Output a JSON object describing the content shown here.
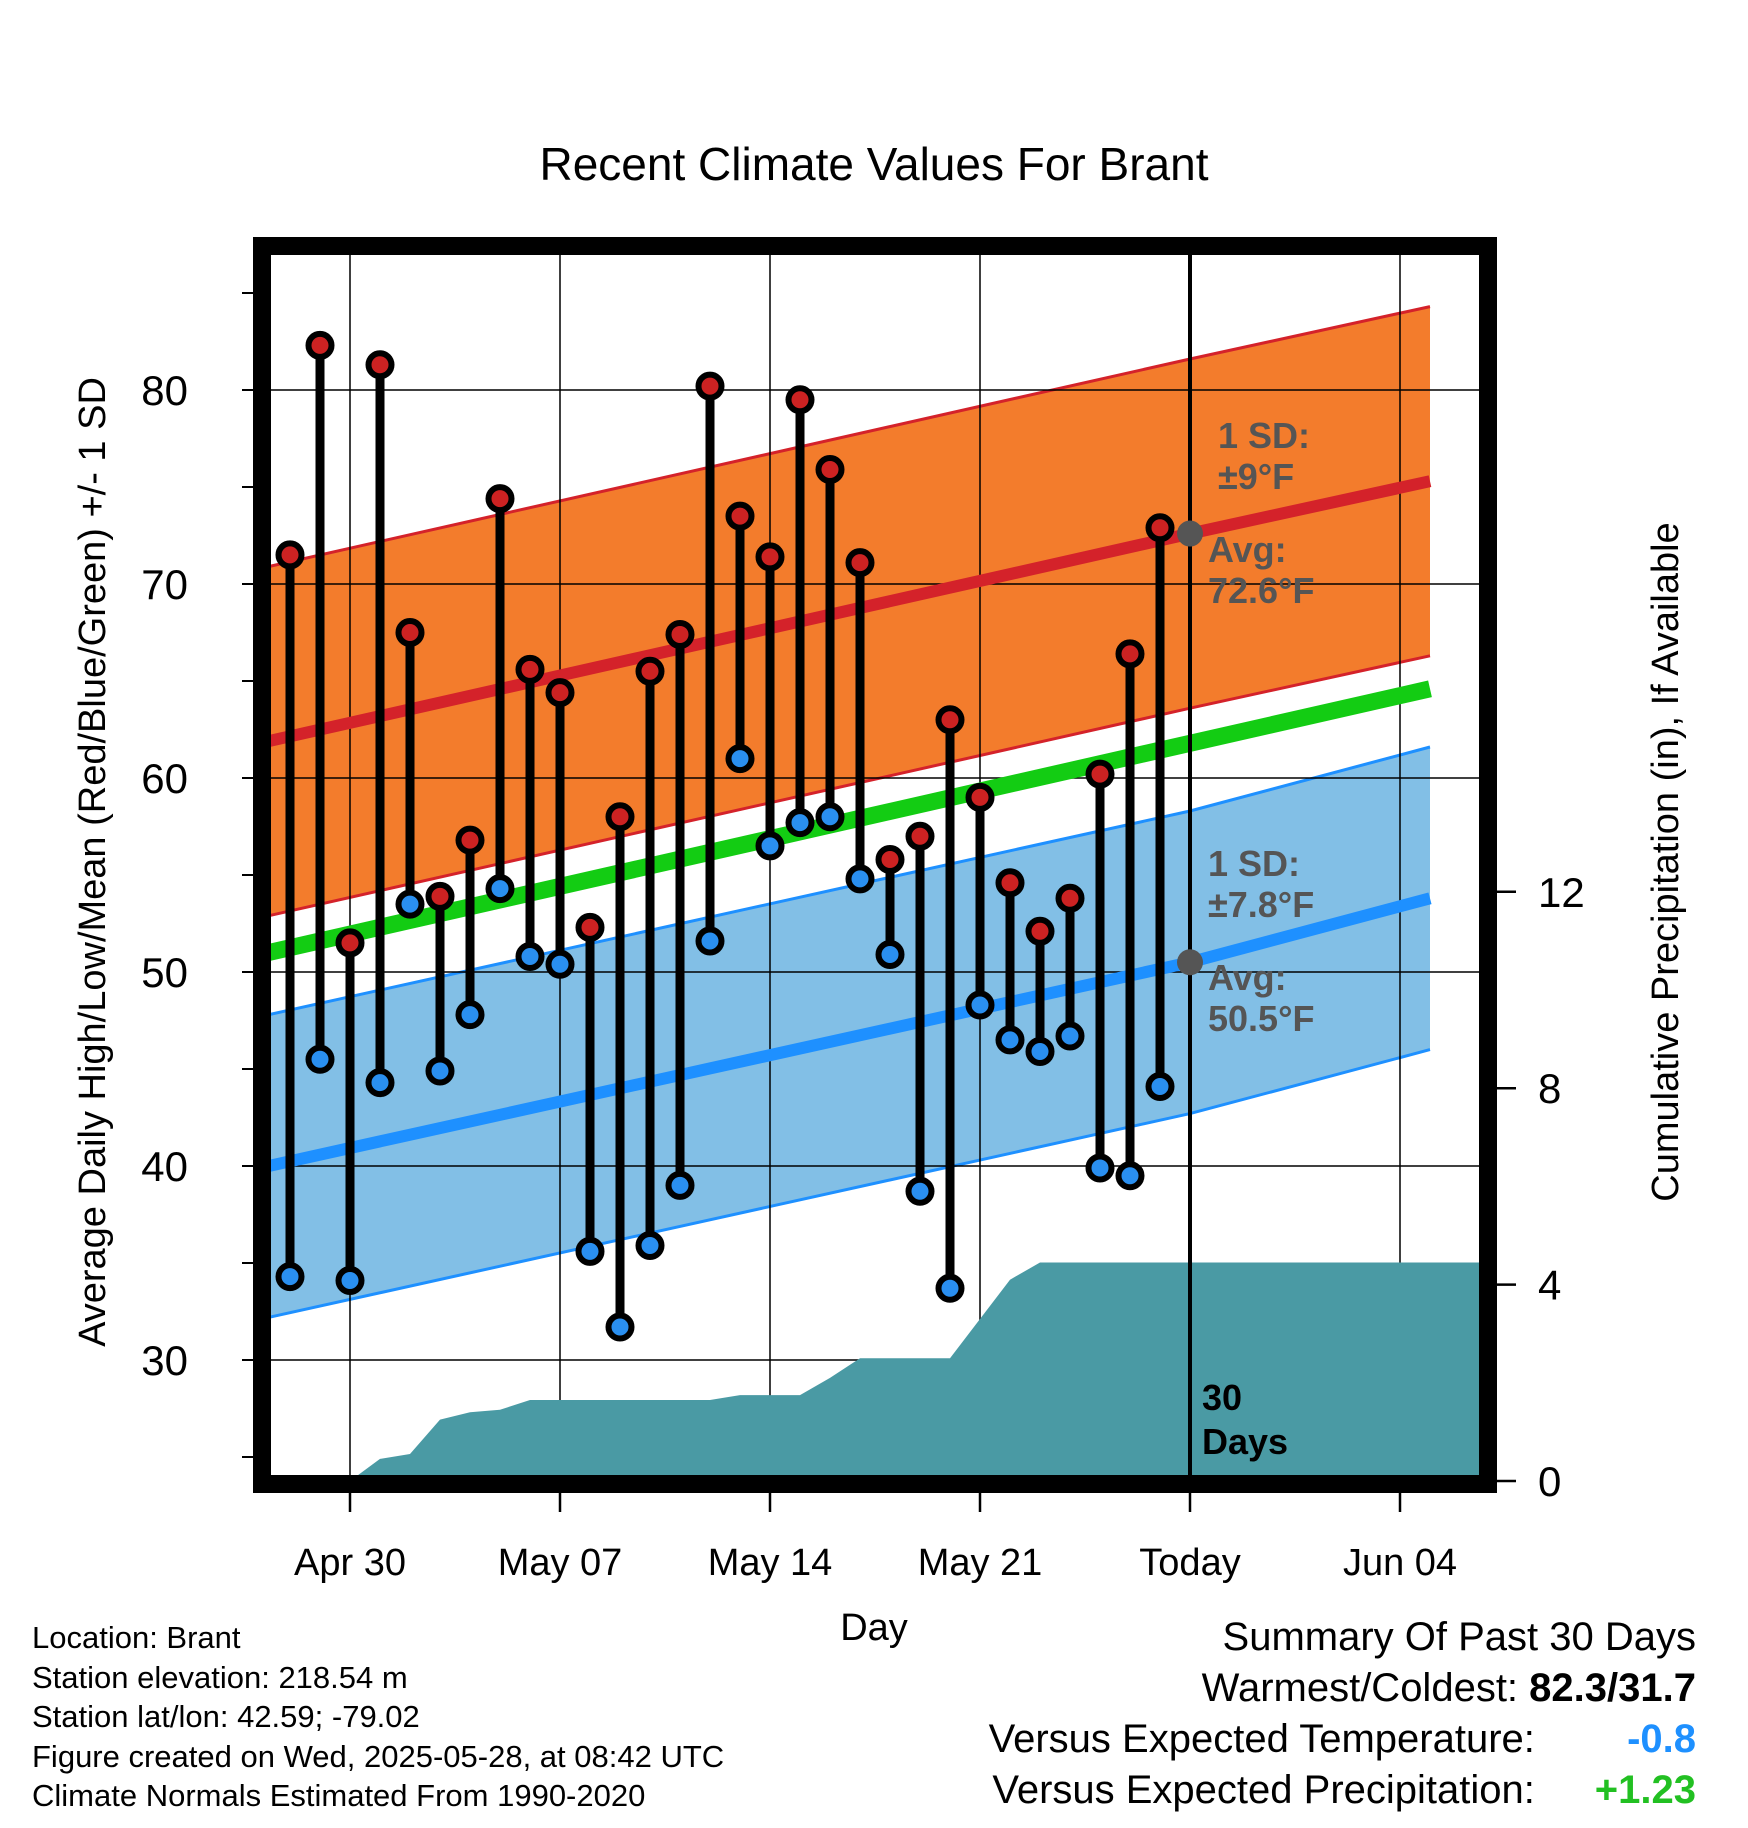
{
  "chart_data": {
    "type": "line",
    "title": "Recent Climate Values For Brant",
    "xlabel": "Day",
    "ylabel": "Average Daily High/Low/Mean (Red/Blue/Green) +/- 1 SD",
    "y2label": "Cumulative Precipitation (in), If Available",
    "ylim": [
      24.2,
      87.6
    ],
    "y2lim": [
      -0.2,
      18.8
    ],
    "xlim": [
      -5.3,
      40.2
    ],
    "x_tick_labels": [
      {
        "day": 0,
        "label": "Apr 30"
      },
      {
        "day": 7,
        "label": "May 07"
      },
      {
        "day": 14,
        "label": "May 14"
      },
      {
        "day": 21,
        "label": "May 21"
      },
      {
        "day": 28,
        "label": "Today"
      },
      {
        "day": 35,
        "label": "Jun 04"
      }
    ],
    "y_ticks": [
      30,
      40,
      50,
      60,
      70,
      80
    ],
    "y2_ticks": [
      0,
      4,
      8,
      12
    ],
    "grid": true,
    "series": [
      {
        "name": "High",
        "color": "#c0201e",
        "x": [
          "Apr 28",
          "Apr 29",
          "Apr 30",
          "May 01",
          "May 02",
          "May 03",
          "May 04",
          "May 05",
          "May 06",
          "May 07",
          "May 08",
          "May 09",
          "May 10",
          "May 11",
          "May 12",
          "May 13",
          "May 14",
          "May 15",
          "May 16",
          "May 17",
          "May 18",
          "May 19",
          "May 20",
          "May 21",
          "May 22",
          "May 23",
          "May 24",
          "May 25",
          "May 26",
          "May 27"
        ],
        "values": [
          71.5,
          82.3,
          51.5,
          81.3,
          67.5,
          53.9,
          56.8,
          74.4,
          65.6,
          64.4,
          52.3,
          58.0,
          65.5,
          67.4,
          80.2,
          73.5,
          71.4,
          79.5,
          75.9,
          71.1,
          55.8,
          57.0,
          63.0,
          59.0,
          54.6,
          52.1,
          53.8,
          60.2,
          66.4,
          72.9
        ]
      },
      {
        "name": "Low",
        "color": "#1e90ff",
        "x": [
          "Apr 28",
          "Apr 29",
          "Apr 30",
          "May 01",
          "May 02",
          "May 03",
          "May 04",
          "May 05",
          "May 06",
          "May 07",
          "May 08",
          "May 09",
          "May 10",
          "May 11",
          "May 12",
          "May 13",
          "May 14",
          "May 15",
          "May 16",
          "May 17",
          "May 18",
          "May 19",
          "May 20",
          "May 21",
          "May 22",
          "May 23",
          "May 24",
          "May 25",
          "May 26",
          "May 27"
        ],
        "values": [
          34.3,
          45.5,
          34.1,
          44.3,
          53.5,
          44.9,
          47.8,
          54.3,
          50.8,
          50.4,
          35.6,
          31.7,
          35.9,
          39.0,
          51.6,
          61.0,
          56.5,
          57.7,
          58.0,
          54.8,
          50.9,
          38.7,
          33.7,
          48.3,
          46.5,
          45.9,
          46.7,
          39.9,
          39.5,
          44.1
        ]
      },
      {
        "name": "Avg High",
        "color": "#d4222a",
        "x": [
          "Apr 27",
          "Today",
          "Jun 05"
        ],
        "values": [
          61.8,
          72.6,
          75.3
        ],
        "sd": 9.0
      },
      {
        "name": "Avg Low",
        "color": "#1e90ff",
        "x": [
          "Apr 27",
          "Today",
          "Jun 05"
        ],
        "values": [
          39.9,
          50.5,
          53.8
        ],
        "sd": 7.8
      },
      {
        "name": "Avg Mean",
        "color": "#13cc13",
        "x": [
          "Apr 27",
          "Jun 05"
        ],
        "values": [
          50.9,
          64.6
        ]
      },
      {
        "name": "Cumulative Precipitation",
        "color": "#4a9aa4",
        "axis": "y2",
        "x": [
          "Apr 30",
          "May 01",
          "May 02",
          "May 03",
          "May 04",
          "May 05",
          "May 06",
          "May 07",
          "May 12",
          "May 13",
          "May 14",
          "May 15",
          "May 16",
          "May 17",
          "May 20",
          "May 21",
          "May 22",
          "May 23",
          "Jun 05"
        ],
        "values": [
          0.0,
          0.45,
          0.55,
          1.25,
          1.4,
          1.45,
          1.65,
          1.65,
          1.65,
          1.75,
          1.75,
          1.75,
          2.1,
          2.5,
          2.5,
          3.3,
          4.1,
          4.45,
          4.45
        ]
      }
    ],
    "annotations": {
      "high_sd": "1 SD:\n±9°F",
      "high_avg": "Avg:\n72.6°F",
      "low_sd": "1 SD:\n±7.8°F",
      "low_avg": "Avg:\n50.5°F",
      "days_line": "30\nDays"
    }
  },
  "footer": {
    "location": "Location: Brant",
    "elevation": "Station elevation: 218.54 m",
    "latlon": "Station lat/lon: 42.59; -79.02",
    "created": "Figure created on Wed, 2025-05-28, at 08:42 UTC",
    "normals": "Climate Normals Estimated From 1990-2020"
  },
  "summary": {
    "title": "Summary Of Past 30 Days",
    "warm_label": "Warmest/Coldest:",
    "warm_value": "82.3/31.7",
    "temp_label": "Versus Expected Temperature:",
    "temp_value": "-0.8",
    "precip_label": "Versus Expected Precipitation:",
    "precip_value": "+1.23"
  }
}
